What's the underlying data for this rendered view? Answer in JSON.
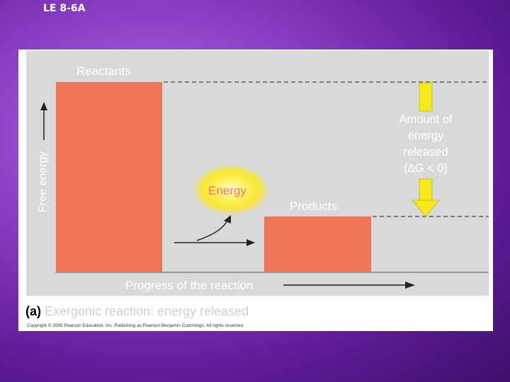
{
  "slide": {
    "title": "LE 8-6A"
  },
  "diagram": {
    "reactants_label": "Reactants",
    "products_label": "Products",
    "energy_label": "Energy",
    "yaxis_label": "Free energy",
    "xaxis_label": "Progress of the reaction",
    "released_label_lines": [
      "Amount of",
      "energy",
      "released",
      "(∆G < 0)"
    ],
    "caption_tag": "(a)",
    "caption_text": "Exergonic reaction: energy released",
    "copyright": "Copyright © 2005 Pearson Education, Inc. Publishing as Pearson Benjamin Cummings. All rights reserved."
  },
  "colors": {
    "bar": "#f07556",
    "plot_bg": "#d9d9d9",
    "arrow_yellow": "#f6e81a",
    "label_text": "#ffffff"
  }
}
